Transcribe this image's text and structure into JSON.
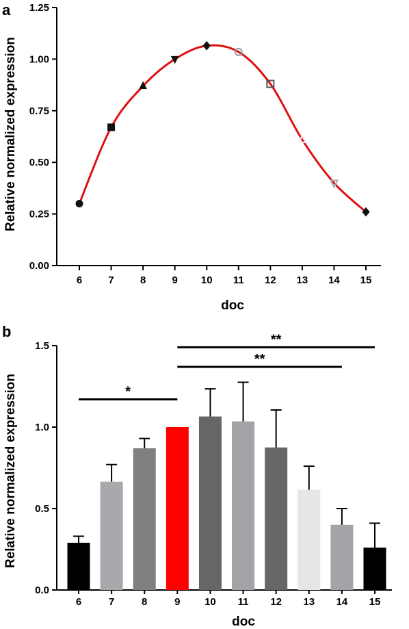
{
  "chart_data": [
    {
      "panel": "a",
      "type": "line",
      "xlabel": "doc",
      "ylabel": "Relative normalized expression",
      "x": [
        6,
        7,
        8,
        9,
        10,
        11,
        12,
        13,
        14,
        15
      ],
      "x_tick_labels": [
        "6",
        "7",
        "8",
        "9",
        "10",
        "11",
        "12",
        "13",
        "14",
        "15"
      ],
      "ylim": [
        0,
        1.25
      ],
      "y_ticks": [
        0.0,
        0.25,
        0.5,
        0.75,
        1.0,
        1.25
      ],
      "y_tick_labels": [
        "0.00",
        "0.25",
        "0.50",
        "0.75",
        "1.00",
        "1.25"
      ],
      "series": [
        {
          "values": [
            0.3,
            0.67,
            0.87,
            1.0,
            1.065,
            1.035,
            0.88,
            0.61,
            0.4,
            0.26
          ],
          "line_color": "#e01010",
          "markers": [
            "circle",
            "square",
            "triangle",
            "triangle-down",
            "diamond",
            "circle-open",
            "square-open",
            "triangle-open",
            "triangle-down-open",
            "diamond"
          ],
          "marker_colors": [
            "#111111",
            "#111111",
            "#111111",
            "#111111",
            "#111111",
            "#9a9a9a",
            "#555555",
            "#eeeeee",
            "#aaaaaa",
            "#111111"
          ]
        }
      ],
      "grid": false
    },
    {
      "panel": "b",
      "type": "bar",
      "xlabel": "doc",
      "ylabel": "Relative normalized expression",
      "categories": [
        "6",
        "7",
        "8",
        "9",
        "10",
        "11",
        "12",
        "13",
        "14",
        "15"
      ],
      "values": [
        0.29,
        0.665,
        0.87,
        1.0,
        1.065,
        1.035,
        0.875,
        0.615,
        0.4,
        0.26
      ],
      "errors": [
        0.04,
        0.105,
        0.06,
        0.0,
        0.17,
        0.24,
        0.23,
        0.145,
        0.1,
        0.15
      ],
      "colors": [
        "#000000",
        "#a8a8ad",
        "#808080",
        "#ff0000",
        "#666666",
        "#a3a3a8",
        "#666666",
        "#e6e6e6",
        "#a3a3a8",
        "#000000"
      ],
      "ylim": [
        0,
        1.5
      ],
      "y_ticks": [
        0.0,
        0.5,
        1.0,
        1.5
      ],
      "y_tick_labels": [
        "0.0",
        "0.5",
        "1.0",
        "1.5"
      ],
      "significance": [
        {
          "from": "6",
          "to": "9",
          "label": "*",
          "y": 1.17
        },
        {
          "from": "9",
          "to": "15",
          "label": "**",
          "y": 1.49
        },
        {
          "from": "9",
          "to": "14",
          "label": "**",
          "y": 1.37
        }
      ],
      "grid": false
    }
  ]
}
